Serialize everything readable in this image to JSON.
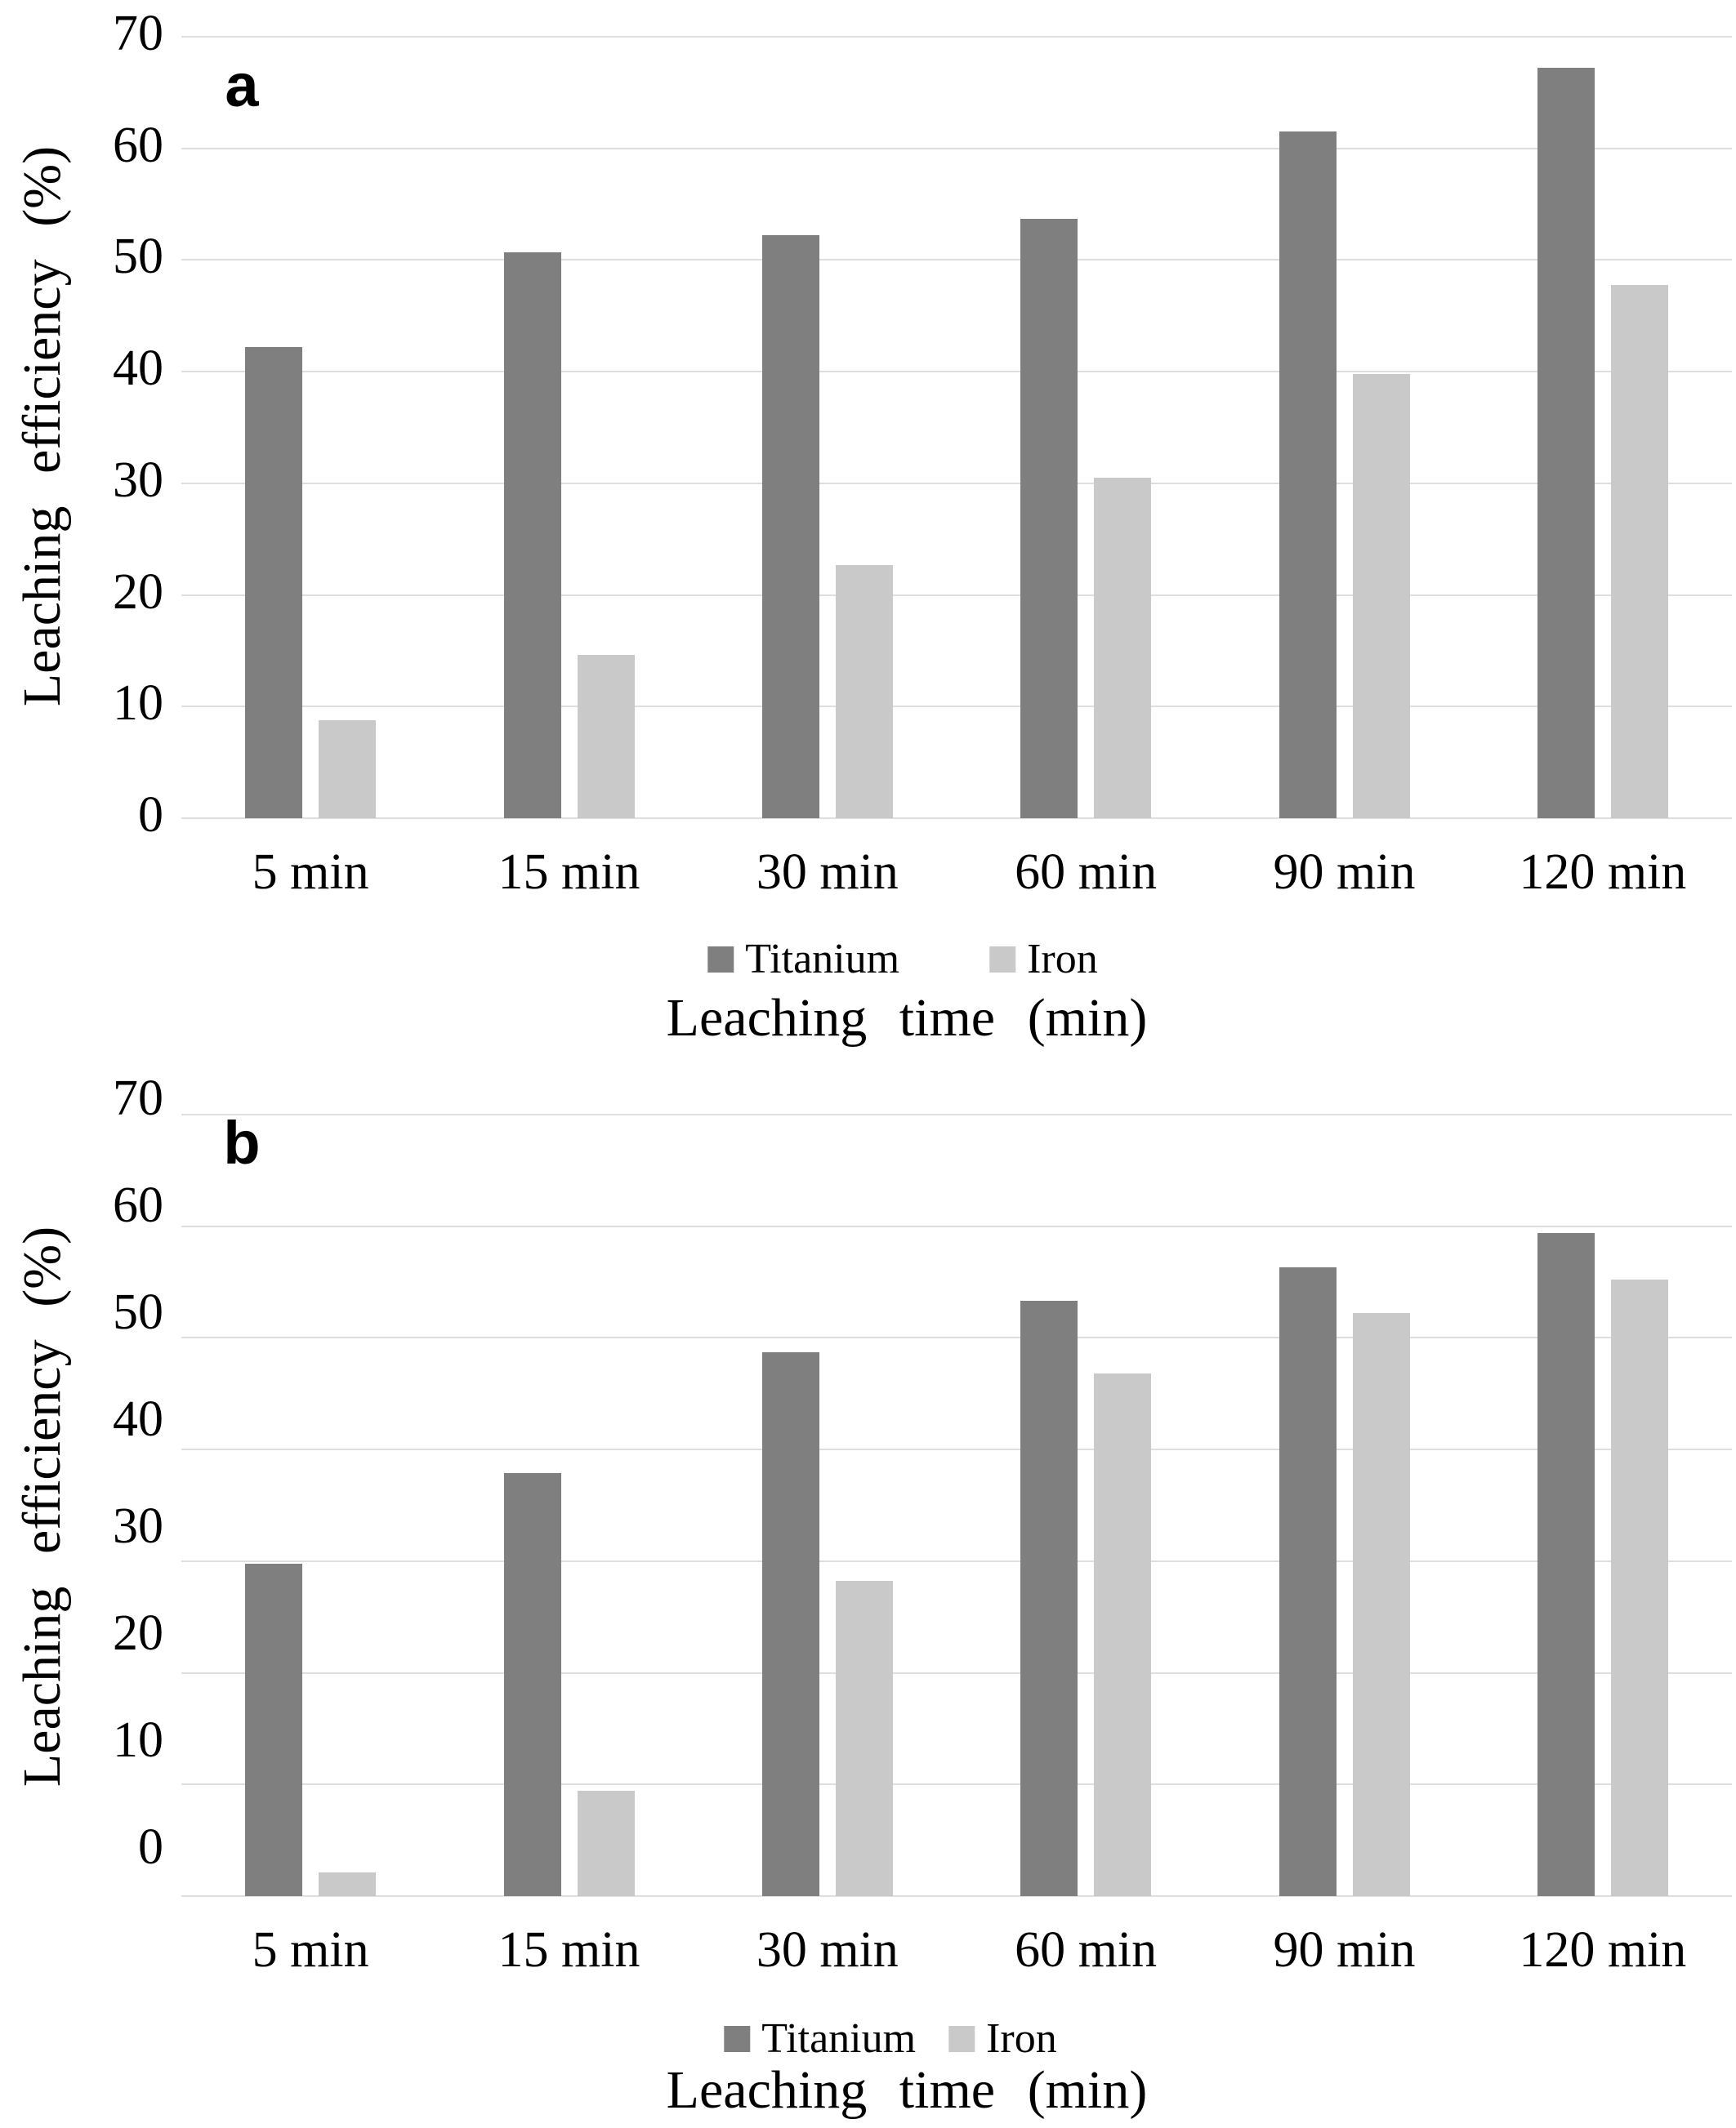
{
  "chart_data": [
    {
      "type": "bar",
      "panel_label": "a",
      "ylabel": "Leaching efficiency (%)",
      "xlabel": "Leaching time (min)",
      "ylim": [
        0,
        70
      ],
      "yticks": [
        0,
        10,
        20,
        30,
        40,
        50,
        60,
        70
      ],
      "grid": true,
      "legend_position": "bottom",
      "categories": [
        "5 min",
        "15 min",
        "30 min",
        "60 min",
        "90 min",
        "120 min"
      ],
      "series": [
        {
          "name": "Titanium",
          "color": "#7f7f7f",
          "values": [
            42.2,
            50.7,
            52.2,
            53.7,
            61.5,
            67.2
          ]
        },
        {
          "name": "Iron",
          "color": "#c9c9c9",
          "values": [
            8.8,
            14.6,
            22.7,
            30.5,
            39.8,
            47.8
          ]
        }
      ]
    },
    {
      "type": "bar",
      "panel_label": "b",
      "ylabel": "Leaching efficiency (%)",
      "xlabel": "Leaching time (min)",
      "ylim": [
        0,
        70
      ],
      "yticks": [
        0,
        10,
        20,
        30,
        40,
        50,
        60,
        70
      ],
      "grid": true,
      "legend_position": "bottom",
      "categories": [
        "5 min",
        "15 min",
        "30 min",
        "60 min",
        "90 min",
        "120 min"
      ],
      "series": [
        {
          "name": "Titanium",
          "color": "#7f7f7f",
          "values": [
            29.8,
            37.9,
            48.7,
            53.3,
            56.3,
            59.4
          ]
        },
        {
          "name": "Iron",
          "color": "#c9c9c9",
          "values": [
            2.1,
            9.4,
            28.2,
            46.8,
            52.2,
            55.2
          ]
        }
      ]
    }
  ],
  "colors": {
    "titanium": "#7f7f7f",
    "iron": "#c9c9c9",
    "gridline": "#dedede",
    "text": "#000000",
    "background": "#ffffff"
  }
}
